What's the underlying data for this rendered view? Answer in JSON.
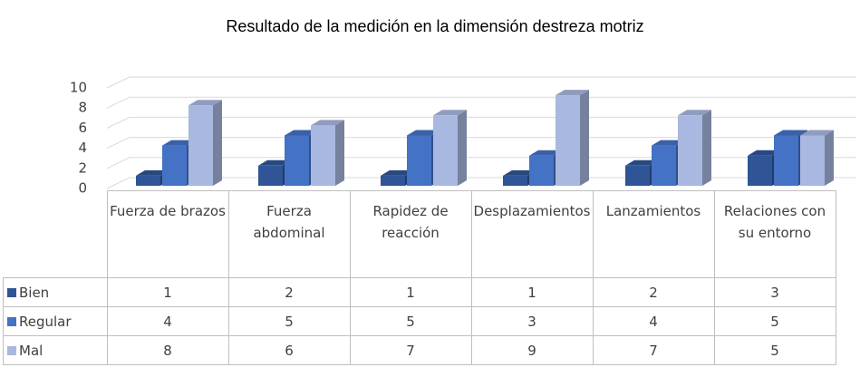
{
  "chart_data": {
    "type": "bar3d",
    "title": "Resultado de la medición en la dimensión destreza motriz",
    "categories": [
      "Fuerza de brazos",
      "Fuerza abdominal",
      "Rapidez de reacción",
      "Desplazamientos",
      "Lanzamientos",
      "Relaciones con su entorno"
    ],
    "series": [
      {
        "name": "Bien",
        "color": "#2f5597",
        "values": [
          1,
          2,
          1,
          1,
          2,
          3
        ]
      },
      {
        "name": "Regular",
        "color": "#4472c4",
        "values": [
          4,
          5,
          5,
          3,
          4,
          5
        ]
      },
      {
        "name": "Mal",
        "color": "#a9b8e0",
        "values": [
          8,
          6,
          7,
          9,
          7,
          5
        ]
      }
    ],
    "ylim": [
      0,
      10
    ],
    "yticks": [
      0,
      2,
      4,
      6,
      8,
      10
    ],
    "grid": true
  }
}
